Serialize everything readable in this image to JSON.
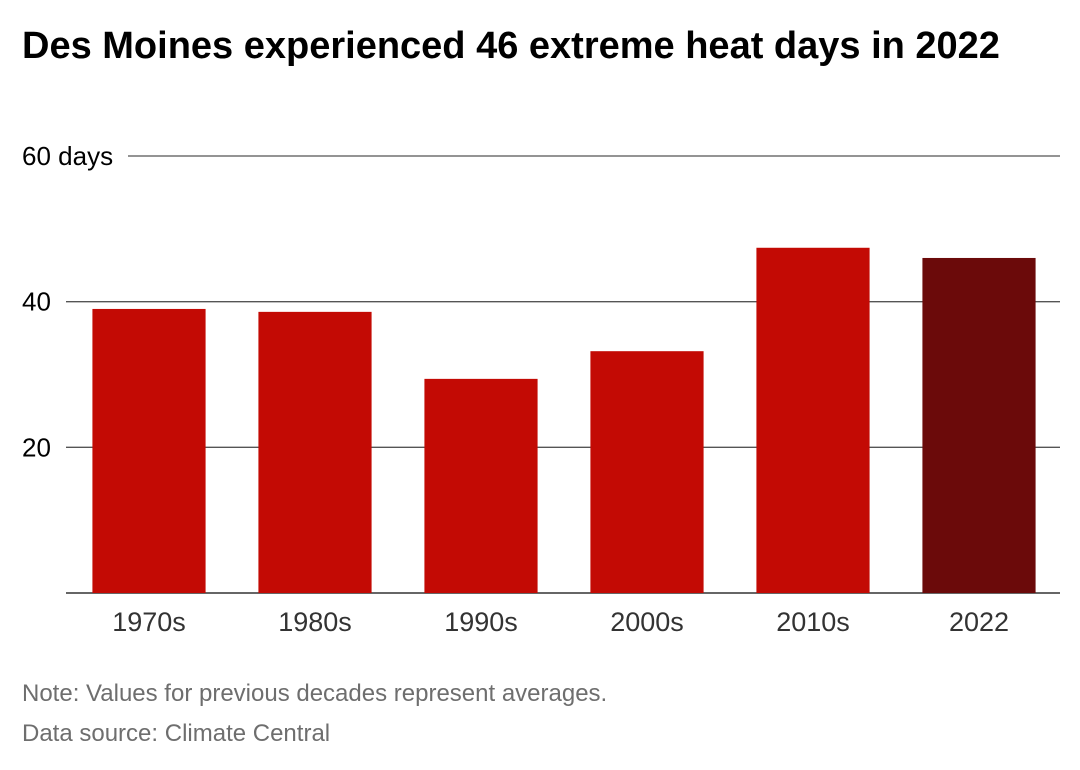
{
  "chart_data": {
    "type": "bar",
    "title": "Des Moines experienced 46 extreme heat days in 2022",
    "categories": [
      "1970s",
      "1980s",
      "1990s",
      "2000s",
      "2010s",
      "2022"
    ],
    "values": [
      39,
      38.6,
      29.4,
      33.2,
      47.4,
      46
    ],
    "ylim": [
      0,
      60
    ],
    "yticks": [
      {
        "value": 20,
        "label": "20"
      },
      {
        "value": 40,
        "label": "40"
      },
      {
        "value": 60,
        "label": "60 days"
      }
    ],
    "grid": true,
    "colors": {
      "bar": "#c30a04",
      "highlight": "#6b0a0a",
      "gridline": "#555555",
      "axis": "#333333"
    },
    "highlight_category": "2022"
  },
  "footer": {
    "note": "Note: Values for previous decades represent averages.",
    "source": "Data source: Climate Central"
  }
}
